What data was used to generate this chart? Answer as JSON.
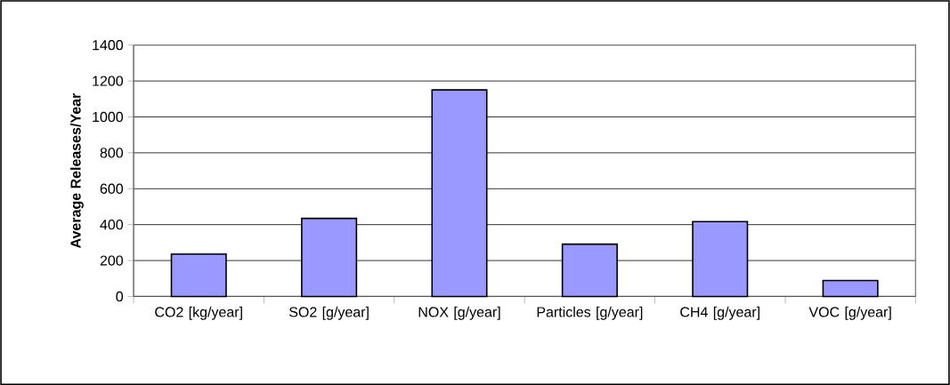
{
  "chart_data": {
    "type": "bar",
    "ylabel": "Average Releases/Year",
    "categories": [
      "CO2 [kg/year]",
      "SO2  [g/year]",
      "NOX [g/year]",
      "Particles [g/year]",
      "CH4  [g/year]",
      "VOC [g/year]"
    ],
    "values": [
      236,
      435,
      1150,
      291,
      417,
      89
    ],
    "color": "#9999ff",
    "ylim": [
      0,
      1400
    ],
    "yticks": [
      0,
      200,
      400,
      600,
      800,
      1000,
      1200,
      1400
    ],
    "grid": "y"
  }
}
